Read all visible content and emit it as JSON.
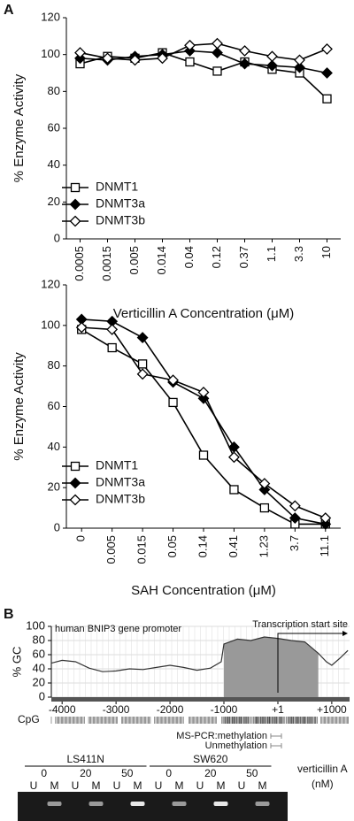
{
  "panel_labels": [
    "A",
    "B"
  ],
  "chart_data": [
    {
      "type": "line",
      "xlabel": "Verticillin A Concentration (μM)",
      "ylabel": "% Enzyme Activity",
      "categories": [
        "0.0005",
        "0.0015",
        "0.005",
        "0.014",
        "0.04",
        "0.12",
        "0.37",
        "1.1",
        "3.3",
        "10"
      ],
      "series": [
        {
          "name": "DNMT1",
          "color": "#000000",
          "marker": "square-open",
          "values": [
            95,
            99,
            98,
            101,
            96,
            91,
            96,
            92,
            90,
            76
          ]
        },
        {
          "name": "DNMT3a",
          "color": "#000000",
          "marker": "diamond-filled",
          "values": [
            98,
            97,
            99,
            100,
            102,
            101,
            95,
            94,
            93,
            90
          ]
        },
        {
          "name": "DNMT3b",
          "color": "#000000",
          "marker": "diamond-open",
          "values": [
            101,
            98,
            97,
            98,
            105,
            106,
            102,
            99,
            97,
            103
          ]
        }
      ],
      "ylim": [
        0,
        120
      ],
      "yticks": [
        0,
        20,
        40,
        60,
        80,
        100,
        120
      ],
      "legend": "lower-left"
    },
    {
      "type": "line",
      "xlabel": "SAH Concentration (μM)",
      "ylabel": "% Enzyme Activity",
      "categories": [
        "0",
        "0.005",
        "0.015",
        "0.05",
        "0.14",
        "0.41",
        "1.23",
        "3.7",
        "11.1"
      ],
      "series": [
        {
          "name": "DNMT1",
          "color": "#000000",
          "marker": "square-open",
          "values": [
            98,
            89,
            81,
            62,
            36,
            19,
            10,
            2,
            2
          ]
        },
        {
          "name": "DNMT3a",
          "color": "#000000",
          "marker": "diamond-filled",
          "values": [
            103,
            102,
            94,
            72,
            64,
            40,
            19,
            5,
            2
          ]
        },
        {
          "name": "DNMT3b",
          "color": "#000000",
          "marker": "diamond-open",
          "values": [
            99,
            98,
            76,
            73,
            67,
            35,
            22,
            11,
            5
          ]
        }
      ],
      "ylim": [
        0,
        120
      ],
      "yticks": [
        0,
        20,
        40,
        60,
        80,
        100,
        120
      ],
      "legend": "lower-left"
    },
    {
      "type": "area",
      "title": "human BNIP3 gene promoter",
      "ylabel": "% GC",
      "x": [
        -4200,
        -4000,
        -3750,
        -3500,
        -3250,
        -3000,
        -2750,
        -2500,
        -2250,
        -2000,
        -1750,
        -1500,
        -1250,
        -1050,
        -1000,
        -750,
        -500,
        -250,
        0,
        250,
        500,
        750,
        900,
        1000,
        1150,
        1300
      ],
      "values": [
        48,
        52,
        50,
        41,
        36,
        37,
        40,
        39,
        42,
        45,
        42,
        38,
        41,
        50,
        75,
        82,
        80,
        85,
        83,
        80,
        78,
        62,
        50,
        45,
        55,
        66
      ],
      "color": "#999999",
      "highlight_range": [
        -1000,
        750
      ],
      "xlim": [
        -4200,
        1330
      ],
      "xticks": [
        -4000,
        -3000,
        -2000,
        -1000,
        {
          "value": 1,
          "label": "+1"
        },
        {
          "value": 1000,
          "label": "+1000"
        }
      ],
      "ylim": [
        0,
        100
      ],
      "yticks": [
        0,
        20,
        40,
        60,
        80,
        100
      ],
      "grid": true,
      "annotation": {
        "text": "Transcription start site",
        "x": 1
      },
      "track_label": "CpG",
      "primers": [
        "MS-PCR:methylation",
        "Unmethylation"
      ]
    }
  ],
  "gel": {
    "cell_lines": [
      "LS411N",
      "SW620"
    ],
    "doses": [
      "0",
      "20",
      "50",
      "0",
      "20",
      "50"
    ],
    "lanes": [
      "U",
      "M",
      "U",
      "M",
      "U",
      "M",
      "U",
      "M",
      "U",
      "M",
      "U",
      "M"
    ],
    "treatment": "verticillin A",
    "unit": "(nM)"
  }
}
